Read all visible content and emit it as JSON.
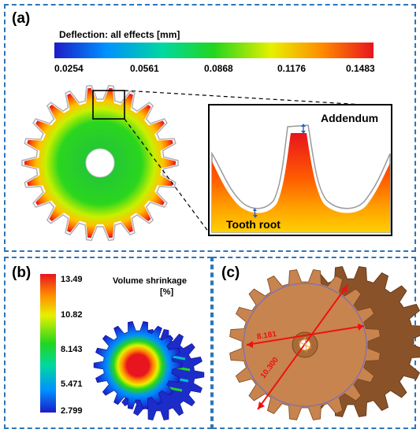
{
  "panel_a": {
    "label": "(a)",
    "colorbar_title": "Deflection: all effects  [mm]",
    "colorbar_ticks": [
      "0.0254",
      "0.0561",
      "0.0868",
      "0.1176",
      "0.1483"
    ],
    "inset_labels": {
      "addendum": "Addendum",
      "tooth_root": "Tooth root"
    },
    "gear_teeth": 22
  },
  "panel_b": {
    "label": "(b)",
    "legend_title_line1": "Volume shrinkage",
    "legend_title_line2": "[%]",
    "colorbar_ticks": [
      "13.49",
      "10.82",
      "8.143",
      "5.471",
      "2.799"
    ]
  },
  "panel_c": {
    "label": "(c)",
    "dimensions": [
      "8.181",
      "10.300"
    ],
    "gear_color": "#c8844e"
  },
  "colors": {
    "border": "#2e75b6",
    "scale": [
      "#1c1cc8",
      "#00a0ff",
      "#00d880",
      "#2ad61e",
      "#ffff00",
      "#ff8c00",
      "#e8141e"
    ]
  }
}
